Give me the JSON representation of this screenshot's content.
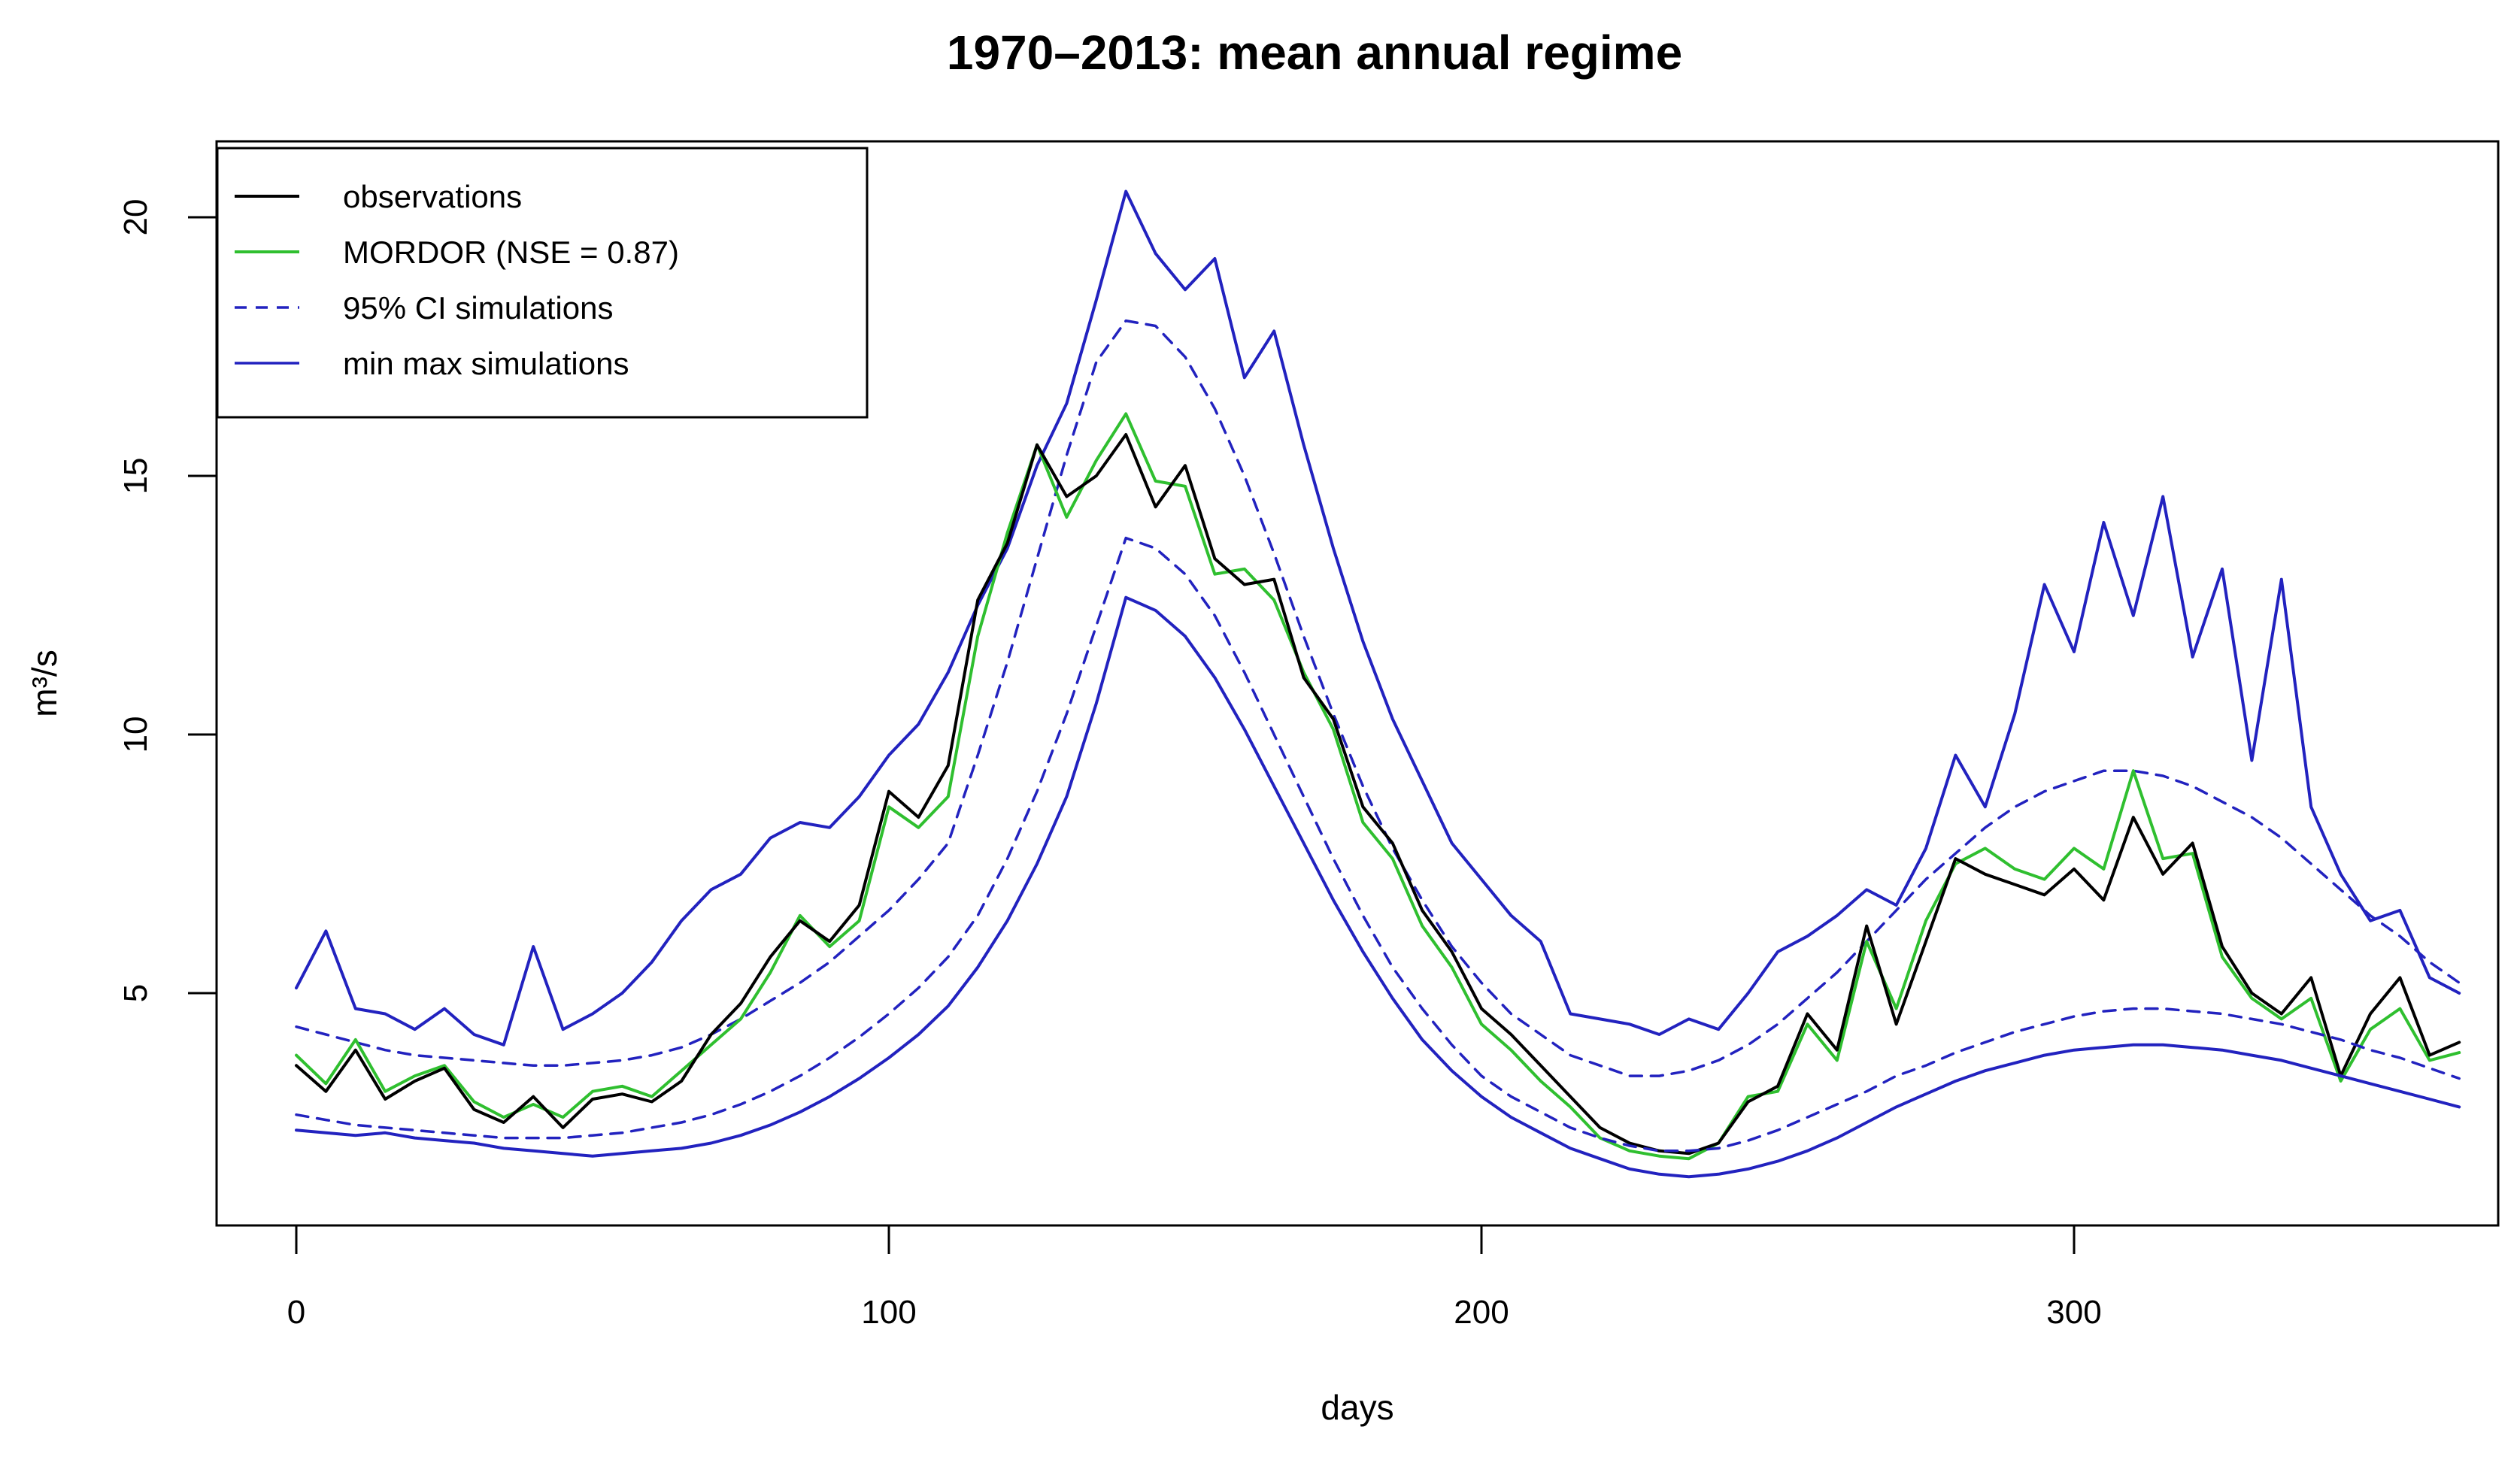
{
  "title": "1970–2013: mean annual regime",
  "axes": {
    "xlabel": "days",
    "ylabel": "m³/s",
    "x_ticks": [
      0,
      100,
      200,
      300
    ],
    "y_ticks": [
      5,
      10,
      15,
      20
    ]
  },
  "legend": {
    "items": [
      {
        "id": "observations",
        "label": "observations",
        "color": "#000000",
        "style": "solid"
      },
      {
        "id": "mordor",
        "label": "MORDOR (NSE = 0.87)",
        "color": "#2fbf2f",
        "style": "solid"
      },
      {
        "id": "ci",
        "label": "95% CI simulations",
        "color": "#2222bf",
        "style": "dashed"
      },
      {
        "id": "minmax",
        "label": "min max simulations",
        "color": "#2222bf",
        "style": "solid"
      }
    ]
  },
  "chart_data": {
    "type": "line",
    "title": "1970–2013: mean annual regime",
    "xlabel": "days",
    "ylabel": "m³/s",
    "xlim": [
      0,
      365
    ],
    "ylim": [
      0.5,
      21.5
    ],
    "grid": false,
    "legend_position": "top-left",
    "days": [
      0,
      5,
      10,
      15,
      20,
      25,
      30,
      35,
      40,
      45,
      50,
      55,
      60,
      65,
      70,
      75,
      80,
      85,
      90,
      95,
      100,
      105,
      110,
      115,
      120,
      125,
      130,
      135,
      140,
      145,
      150,
      155,
      160,
      165,
      170,
      175,
      180,
      185,
      190,
      195,
      200,
      205,
      210,
      215,
      220,
      225,
      230,
      235,
      240,
      245,
      250,
      255,
      260,
      265,
      270,
      275,
      280,
      285,
      290,
      295,
      300,
      305,
      310,
      315,
      320,
      325,
      330,
      335,
      340,
      345,
      350,
      355,
      360,
      365
    ],
    "series": [
      {
        "id": "max-simulations",
        "name": "max simulations",
        "color": "#2222bf",
        "style": "solid",
        "values": [
          5.1,
          6.2,
          4.7,
          4.6,
          4.3,
          4.7,
          4.2,
          4.0,
          5.9,
          4.3,
          4.6,
          5.0,
          5.6,
          6.4,
          7.0,
          7.3,
          8.0,
          8.3,
          8.2,
          8.8,
          9.6,
          10.2,
          11.2,
          12.5,
          13.6,
          15.2,
          16.4,
          18.4,
          20.5,
          19.3,
          18.6,
          19.2,
          16.9,
          17.8,
          15.6,
          13.6,
          11.8,
          10.3,
          9.1,
          7.9,
          7.2,
          6.5,
          6.0,
          4.6,
          4.5,
          4.4,
          4.2,
          4.5,
          4.3,
          5.0,
          5.8,
          6.1,
          6.5,
          7.0,
          6.7,
          7.8,
          9.6,
          8.6,
          10.4,
          12.9,
          11.6,
          14.1,
          12.3,
          14.6,
          11.5,
          13.2,
          9.5,
          13.0,
          8.6,
          7.3,
          6.4,
          6.6,
          5.3,
          5.0
        ]
      },
      {
        "id": "ci-upper",
        "name": "95% CI upper",
        "color": "#2222bf",
        "style": "dashed",
        "values": [
          4.35,
          4.2,
          4.05,
          3.9,
          3.8,
          3.75,
          3.7,
          3.65,
          3.6,
          3.6,
          3.65,
          3.7,
          3.8,
          3.95,
          4.2,
          4.5,
          4.85,
          5.2,
          5.6,
          6.1,
          6.6,
          7.2,
          7.9,
          9.6,
          11.4,
          13.4,
          15.4,
          17.2,
          18.0,
          17.9,
          17.3,
          16.3,
          15.0,
          13.5,
          11.9,
          10.4,
          9.0,
          7.8,
          6.8,
          5.9,
          5.2,
          4.6,
          4.2,
          3.8,
          3.6,
          3.4,
          3.4,
          3.5,
          3.7,
          4.0,
          4.4,
          4.9,
          5.4,
          6.0,
          6.6,
          7.2,
          7.7,
          8.2,
          8.6,
          8.9,
          9.1,
          9.3,
          9.3,
          9.2,
          9.0,
          8.7,
          8.4,
          8.0,
          7.5,
          7.0,
          6.5,
          6.1,
          5.6,
          5.2
        ]
      },
      {
        "id": "mordor",
        "name": "MORDOR (NSE = 0.87)",
        "color": "#2fbf2f",
        "style": "solid",
        "values": [
          3.8,
          3.25,
          4.1,
          3.1,
          3.4,
          3.6,
          2.9,
          2.6,
          2.85,
          2.6,
          3.1,
          3.2,
          3.0,
          3.5,
          4.0,
          4.5,
          5.4,
          6.5,
          5.9,
          6.4,
          8.6,
          8.2,
          8.8,
          11.9,
          13.9,
          15.6,
          14.2,
          15.3,
          16.2,
          14.9,
          14.8,
          13.1,
          13.2,
          12.6,
          11.2,
          10.1,
          8.3,
          7.6,
          6.3,
          5.5,
          4.4,
          3.9,
          3.3,
          2.8,
          2.2,
          1.95,
          1.85,
          1.8,
          2.1,
          3.0,
          3.1,
          4.4,
          3.7,
          6.0,
          4.7,
          6.4,
          7.5,
          7.8,
          7.4,
          7.2,
          7.8,
          7.4,
          9.3,
          7.6,
          7.7,
          5.7,
          4.9,
          4.5,
          4.9,
          3.3,
          4.3,
          4.7,
          3.7,
          3.85
        ]
      },
      {
        "id": "observations",
        "name": "observations",
        "color": "#000000",
        "style": "solid",
        "values": [
          3.6,
          3.1,
          3.9,
          2.95,
          3.3,
          3.55,
          2.75,
          2.5,
          3.0,
          2.4,
          2.95,
          3.05,
          2.9,
          3.3,
          4.2,
          4.8,
          5.7,
          6.4,
          6.0,
          6.7,
          8.9,
          8.4,
          9.4,
          12.6,
          13.7,
          15.6,
          14.6,
          15.0,
          15.8,
          14.4,
          15.2,
          13.4,
          12.9,
          13.0,
          11.1,
          10.3,
          8.6,
          7.9,
          6.6,
          5.8,
          4.7,
          4.2,
          3.6,
          3.0,
          2.4,
          2.1,
          1.95,
          1.9,
          2.1,
          2.9,
          3.2,
          4.6,
          3.9,
          6.3,
          4.4,
          6.0,
          7.6,
          7.3,
          7.1,
          6.9,
          7.4,
          6.8,
          8.4,
          7.3,
          7.9,
          5.9,
          5.0,
          4.6,
          5.3,
          3.4,
          4.6,
          5.3,
          3.8,
          4.05
        ]
      },
      {
        "id": "ci-lower",
        "name": "95% CI lower",
        "color": "#2222bf",
        "style": "dashed",
        "values": [
          2.65,
          2.55,
          2.45,
          2.4,
          2.35,
          2.3,
          2.25,
          2.2,
          2.2,
          2.2,
          2.25,
          2.3,
          2.4,
          2.5,
          2.65,
          2.85,
          3.1,
          3.4,
          3.75,
          4.15,
          4.6,
          5.1,
          5.7,
          6.5,
          7.6,
          8.9,
          10.4,
          12.1,
          13.8,
          13.6,
          13.1,
          12.3,
          11.2,
          10.0,
          8.8,
          7.6,
          6.5,
          5.5,
          4.7,
          4.0,
          3.4,
          3.0,
          2.7,
          2.4,
          2.2,
          2.05,
          1.95,
          1.95,
          2.0,
          2.15,
          2.35,
          2.6,
          2.85,
          3.1,
          3.4,
          3.6,
          3.85,
          4.05,
          4.25,
          4.4,
          4.55,
          4.65,
          4.7,
          4.7,
          4.65,
          4.6,
          4.5,
          4.4,
          4.25,
          4.1,
          3.9,
          3.75,
          3.55,
          3.35
        ]
      },
      {
        "id": "min-simulations",
        "name": "min simulations",
        "color": "#2222bf",
        "style": "solid",
        "values": [
          2.35,
          2.3,
          2.25,
          2.3,
          2.2,
          2.15,
          2.1,
          2.0,
          1.95,
          1.9,
          1.85,
          1.9,
          1.95,
          2.0,
          2.1,
          2.25,
          2.45,
          2.7,
          3.0,
          3.35,
          3.75,
          4.2,
          4.75,
          5.5,
          6.4,
          7.5,
          8.8,
          10.6,
          12.65,
          12.4,
          11.9,
          11.1,
          10.1,
          9.0,
          7.9,
          6.8,
          5.8,
          4.9,
          4.1,
          3.5,
          3.0,
          2.6,
          2.3,
          2.0,
          1.8,
          1.6,
          1.5,
          1.45,
          1.5,
          1.6,
          1.75,
          1.95,
          2.2,
          2.5,
          2.8,
          3.05,
          3.3,
          3.5,
          3.65,
          3.8,
          3.9,
          3.95,
          4.0,
          4.0,
          3.95,
          3.9,
          3.8,
          3.7,
          3.55,
          3.4,
          3.25,
          3.1,
          2.95,
          2.8
        ]
      }
    ]
  }
}
